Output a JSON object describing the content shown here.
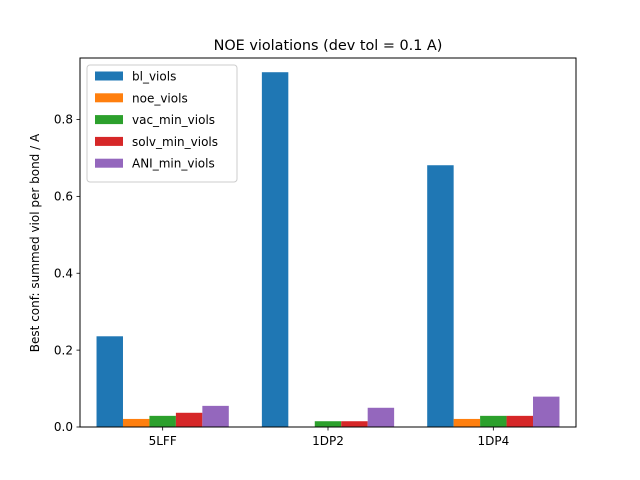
{
  "chart_data": {
    "type": "bar",
    "title": "NOE violations (dev tol = 0.1 A)",
    "xlabel": "",
    "ylabel": "Best conf: summed viol per bond / A",
    "categories": [
      "5LFF",
      "1DP2",
      "1DP4"
    ],
    "ylim": [
      0,
      0.96
    ],
    "yticks": [
      0.0,
      0.2,
      0.4,
      0.6,
      0.8
    ],
    "ytick_labels": [
      "0.0",
      "0.2",
      "0.4",
      "0.6",
      "0.8"
    ],
    "grid": false,
    "legend_position": "top-left",
    "series": [
      {
        "name": "bl_viols",
        "color": "#1f77b4",
        "values": [
          0.236,
          0.923,
          0.681
        ]
      },
      {
        "name": "noe_viols",
        "color": "#ff7f0e",
        "values": [
          0.021,
          0.0,
          0.021
        ]
      },
      {
        "name": "vac_min_viols",
        "color": "#2ca02c",
        "values": [
          0.029,
          0.015,
          0.029
        ]
      },
      {
        "name": "solv_min_viols",
        "color": "#d62728",
        "values": [
          0.037,
          0.015,
          0.029
        ]
      },
      {
        "name": "ANI_min_viols",
        "color": "#9467bd",
        "values": [
          0.055,
          0.05,
          0.079
        ]
      }
    ]
  }
}
